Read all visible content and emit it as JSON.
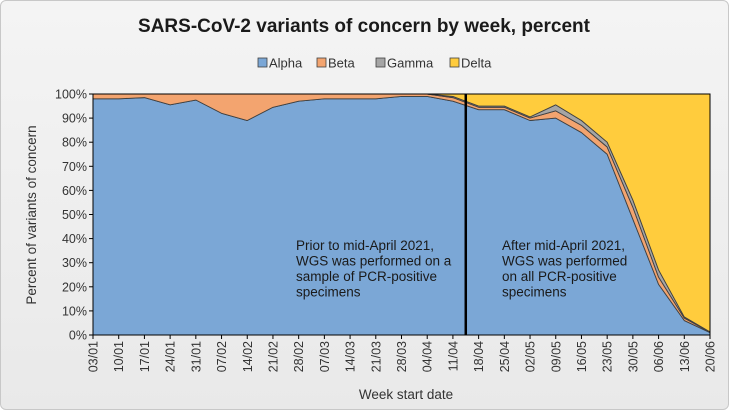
{
  "chart_data": {
    "type": "area",
    "stacked": true,
    "title": "SARS-CoV-2 variants of concern by week, percent",
    "xlabel": "Week start date",
    "ylabel": "Percent of variants of concern",
    "ylim": [
      0,
      100
    ],
    "yticks": [
      "0%",
      "10%",
      "20%",
      "30%",
      "40%",
      "50%",
      "60%",
      "70%",
      "80%",
      "90%",
      "100%"
    ],
    "legend_position": "top-center",
    "categories": [
      "03/01",
      "10/01",
      "17/01",
      "24/01",
      "31/01",
      "07/02",
      "14/02",
      "21/02",
      "28/02",
      "07/03",
      "14/03",
      "21/03",
      "28/03",
      "04/04",
      "11/04",
      "18/04",
      "25/04",
      "02/05",
      "09/05",
      "16/05",
      "23/05",
      "30/05",
      "06/06",
      "13/06",
      "20/06"
    ],
    "series": [
      {
        "name": "Alpha",
        "color": "#7ba7d6",
        "values": [
          98,
          98,
          98.5,
          95.5,
          97.5,
          92,
          89,
          94.5,
          97,
          98,
          98,
          98,
          99,
          99,
          97,
          93.5,
          93.5,
          89,
          90,
          84,
          75,
          48,
          21,
          6,
          1
        ]
      },
      {
        "name": "Beta",
        "color": "#f3a46f",
        "values": [
          2,
          2,
          1.5,
          4.5,
          2.5,
          8,
          11,
          5.5,
          3,
          2,
          2,
          2,
          1,
          1,
          1.5,
          1,
          1,
          1,
          3,
          3,
          3,
          5,
          3,
          1,
          0.2
        ]
      },
      {
        "name": "Gamma",
        "color": "#a5a5a5",
        "values": [
          0,
          0,
          0,
          0,
          0,
          0,
          0,
          0,
          0,
          0,
          0,
          0,
          0,
          0,
          0.5,
          0.5,
          0.5,
          0.5,
          2.5,
          2,
          2,
          3,
          3,
          0.5,
          0.1
        ]
      },
      {
        "name": "Delta",
        "color": "#ffcc3d",
        "values": [
          0,
          0,
          0,
          0,
          0,
          0,
          0,
          0,
          0,
          0,
          0,
          0,
          0,
          0,
          1,
          5,
          5,
          9.5,
          4.5,
          11,
          20,
          44,
          73,
          92.5,
          98.7
        ]
      }
    ],
    "divider_after_index": 14,
    "annotations": [
      {
        "name": "prior-mid-april-note",
        "lines": [
          "Prior to mid-April 2021,",
          "WGS was performed on a",
          "sample of PCR-positive",
          "specimens"
        ]
      },
      {
        "name": "after-mid-april-note",
        "lines": [
          "After mid-April 2021,",
          "WGS was performed",
          "on all PCR-positive",
          "specimens"
        ]
      }
    ]
  }
}
